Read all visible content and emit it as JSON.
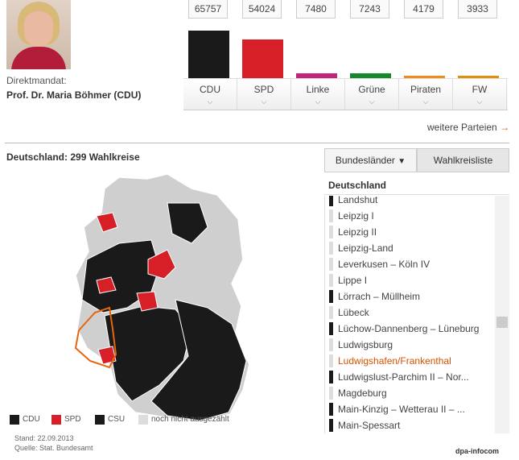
{
  "candidate": {
    "mandate_label": "Direktmandat:",
    "name": "Prof. Dr. Maria Böhmer (CDU)"
  },
  "chart_data": {
    "type": "bar",
    "categories": [
      "CDU",
      "SPD",
      "Linke",
      "Grüne",
      "Piraten",
      "FW"
    ],
    "values": [
      65757,
      54024,
      7480,
      7243,
      4179,
      3933
    ],
    "colors": [
      "#1a1a1a",
      "#d61f26",
      "#c0267a",
      "#15882c",
      "#f08a1c",
      "#e0900f"
    ],
    "ylim": [
      0,
      65757
    ]
  },
  "more_parties_link": "weitere Parteien",
  "map": {
    "title": "Deutschland: 299 Wahlkreise",
    "legend": [
      {
        "label": "CDU",
        "color": "#1a1a1a"
      },
      {
        "label": "SPD",
        "color": "#d61f26"
      },
      {
        "label": "CSU",
        "color": "#1a1a1a"
      },
      {
        "label": "noch nicht ausgezählt",
        "color": "#dddddd"
      }
    ]
  },
  "controls": {
    "bundeslaender_label": "Bundesländer",
    "wahlkreisliste_label": "Wahlkreisliste",
    "list_header": "Deutschland"
  },
  "districts": [
    {
      "name": "Landshut",
      "party": "csu"
    },
    {
      "name": "Leipzig I",
      "party": "none"
    },
    {
      "name": "Leipzig II",
      "party": "none"
    },
    {
      "name": "Leipzig-Land",
      "party": "none"
    },
    {
      "name": "Leverkusen – Köln IV",
      "party": "none"
    },
    {
      "name": "Lippe I",
      "party": "none"
    },
    {
      "name": "Lörrach – Müllheim",
      "party": "cdu"
    },
    {
      "name": "Lübeck",
      "party": "none"
    },
    {
      "name": "Lüchow-Dannenberg – Lüneburg",
      "party": "cdu"
    },
    {
      "name": "Ludwigsburg",
      "party": "none"
    },
    {
      "name": "Ludwigshafen/Frankenthal",
      "party": "none",
      "selected": true
    },
    {
      "name": "Ludwigslust-Parchim II – Nor...",
      "party": "cdu"
    },
    {
      "name": "Magdeburg",
      "party": "none"
    },
    {
      "name": "Main-Kinzig – Wetterau II – ...",
      "party": "cdu"
    },
    {
      "name": "Main-Spessart",
      "party": "csu"
    }
  ],
  "footer": {
    "stand": "Stand: 22.09.2013",
    "quelle": "Quelle: Stat. Bundesamt",
    "credit": "dpa-infocom"
  }
}
